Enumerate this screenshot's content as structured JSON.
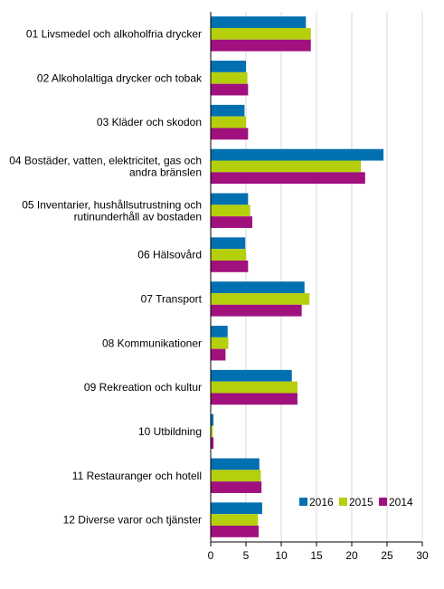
{
  "chart_data": {
    "type": "bar",
    "orientation": "horizontal",
    "categories": [
      [
        "01 Livsmedel och alkoholfria drycker"
      ],
      [
        "02 Alkoholaltiga drycker och tobak"
      ],
      [
        "03 Kläder och skodon"
      ],
      [
        "04 Bostäder, vatten, elektricitet, gas och",
        "andra bränslen"
      ],
      [
        "05 Inventarier, hushållsutrustning och",
        "rutinunderhåll av bostaden"
      ],
      [
        "06 Hälsovård"
      ],
      [
        "07 Transport"
      ],
      [
        "08 Kommunikationer"
      ],
      [
        "09 Rekreation och kultur"
      ],
      [
        "10 Utbildning"
      ],
      [
        "11 Restauranger och hotell"
      ],
      [
        "12 Diverse varor och tjänster"
      ]
    ],
    "series": [
      {
        "name": "2016",
        "color": "#0070b0",
        "values": [
          13.5,
          5.0,
          4.8,
          24.5,
          5.3,
          4.9,
          13.3,
          2.4,
          11.5,
          0.4,
          6.9,
          7.3
        ]
      },
      {
        "name": "2015",
        "color": "#b5cf0d",
        "values": [
          14.2,
          5.2,
          5.0,
          21.3,
          5.6,
          5.0,
          14.0,
          2.5,
          12.3,
          0.3,
          7.1,
          6.7
        ]
      },
      {
        "name": "2014",
        "color": "#a0117e",
        "values": [
          14.2,
          5.3,
          5.3,
          21.9,
          5.9,
          5.3,
          12.9,
          2.1,
          12.3,
          0.4,
          7.2,
          6.8
        ]
      }
    ],
    "xlim": [
      0,
      30
    ],
    "xticks": [
      0,
      5,
      10,
      15,
      20,
      25,
      30
    ],
    "grid": true,
    "legend": "bottom-right",
    "title": "",
    "xlabel": "",
    "ylabel": ""
  }
}
